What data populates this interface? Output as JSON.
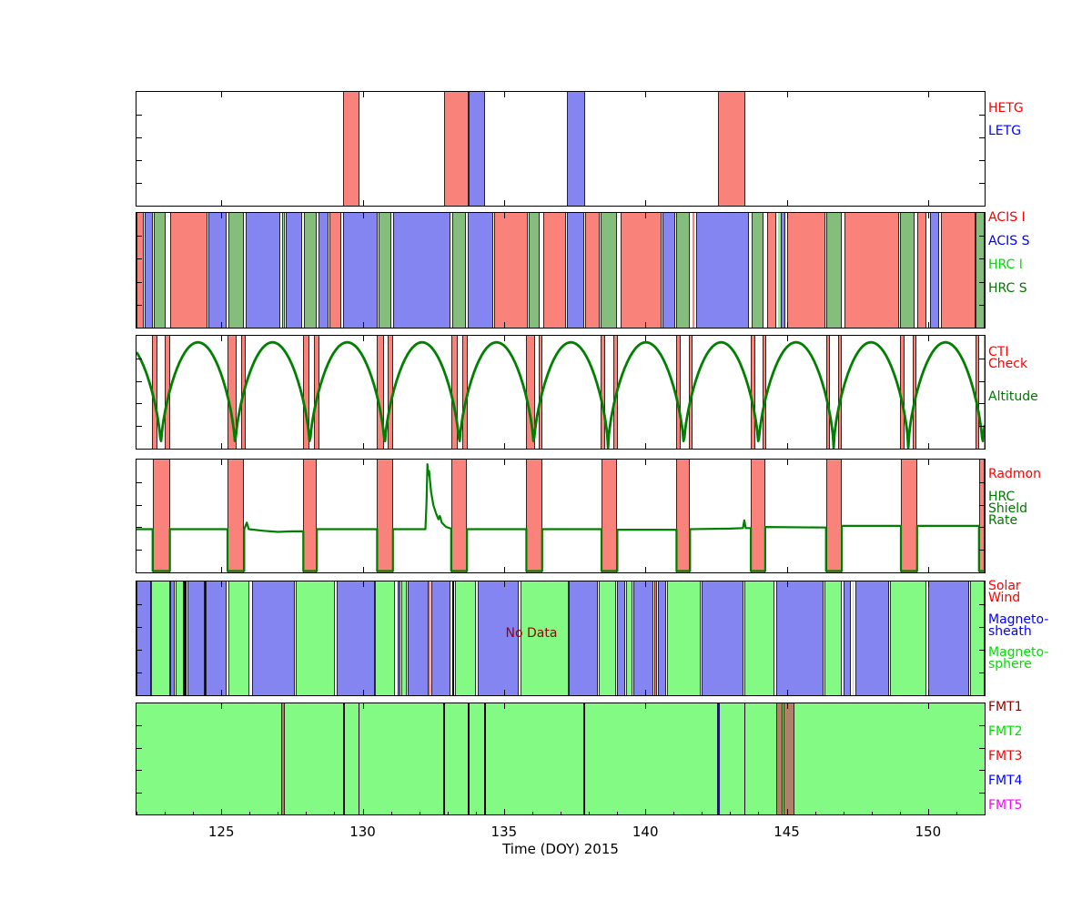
{
  "chart_data": {
    "type": "area",
    "subtype": "multipanel-timeline",
    "title": "",
    "xlabel": "Time (DOY) 2015",
    "xlim": [
      122,
      152
    ],
    "xticks": [
      125,
      130,
      135,
      140,
      145,
      150
    ],
    "grid": false,
    "legend_position": "right-of-each-panel",
    "palette": {
      "red": "#f9827a",
      "blue": "#8585f2",
      "sage": "#85bd7d",
      "bright": "#83fa83",
      "black": "#000000",
      "navy": "#1a1a66",
      "brown": "#b08068",
      "curve": "#008000"
    },
    "panels": [
      {
        "id": "gratings",
        "labels": [
          {
            "lines": [
              "HETG"
            ],
            "color": "#ff0000"
          },
          {
            "lines": [
              "LETG"
            ],
            "color": "#0000ff"
          }
        ],
        "segments": [
          [
            129.31,
            129.89,
            "red"
          ],
          [
            132.88,
            133.75,
            "red"
          ],
          [
            133.75,
            134.33,
            "blue"
          ],
          [
            137.22,
            137.87,
            "blue"
          ],
          [
            142.57,
            143.53,
            "red"
          ]
        ]
      },
      {
        "id": "instruments",
        "labels": [
          {
            "lines": [
              "ACIS I"
            ],
            "color": "#ff0000"
          },
          {
            "lines": [
              "ACIS S"
            ],
            "color": "#0000ff"
          },
          {
            "lines": [
              "HRC I"
            ],
            "color": "#00dd00"
          },
          {
            "lines": [
              "HRC S"
            ],
            "color": "#007700"
          }
        ],
        "segments": [
          [
            122.0,
            122.26,
            "red"
          ],
          [
            122.29,
            122.57,
            "blue"
          ],
          [
            122.61,
            123.03,
            "sage"
          ],
          [
            123.18,
            124.5,
            "red"
          ],
          [
            124.54,
            125.19,
            "blue"
          ],
          [
            125.25,
            125.79,
            "sage"
          ],
          [
            125.86,
            127.1,
            "blue"
          ],
          [
            127.14,
            127.25,
            "bright"
          ],
          [
            127.29,
            127.85,
            "blue"
          ],
          [
            127.91,
            128.36,
            "sage"
          ],
          [
            128.43,
            128.79,
            "blue"
          ],
          [
            128.83,
            129.24,
            "red"
          ],
          [
            129.3,
            130.53,
            "blue"
          ],
          [
            130.55,
            131.01,
            "sage"
          ],
          [
            131.07,
            133.1,
            "blue"
          ],
          [
            133.16,
            133.64,
            "sage"
          ],
          [
            133.72,
            134.61,
            "blue"
          ],
          [
            134.66,
            135.84,
            "red"
          ],
          [
            135.87,
            136.27,
            "sage"
          ],
          [
            136.38,
            137.18,
            "red"
          ],
          [
            137.24,
            137.83,
            "blue"
          ],
          [
            137.88,
            138.37,
            "red"
          ],
          [
            138.41,
            139.01,
            "sage"
          ],
          [
            139.11,
            140.56,
            "red"
          ],
          [
            140.62,
            141.05,
            "blue"
          ],
          [
            141.1,
            141.58,
            "sage"
          ],
          [
            141.67,
            141.74,
            "red"
          ],
          [
            141.8,
            143.67,
            "blue"
          ],
          [
            143.75,
            144.19,
            "sage"
          ],
          [
            144.31,
            144.64,
            "red"
          ],
          [
            144.69,
            144.78,
            "bright"
          ],
          [
            144.8,
            144.95,
            "blue"
          ],
          [
            145.0,
            146.36,
            "red"
          ],
          [
            146.39,
            146.95,
            "sage"
          ],
          [
            147.03,
            148.98,
            "red"
          ],
          [
            149.01,
            149.52,
            "sage"
          ],
          [
            149.61,
            149.95,
            "red"
          ],
          [
            150.06,
            150.38,
            "blue"
          ],
          [
            150.46,
            151.67,
            "red"
          ],
          [
            151.69,
            152.0,
            "sage"
          ]
        ]
      },
      {
        "id": "cti-altitude",
        "labels": [
          {
            "lines": [
              "CTI",
              "Check"
            ],
            "color": "#ff0000"
          },
          {
            "lines": [
              "Altitude"
            ],
            "color": "#007700"
          }
        ],
        "bars": [
          [
            122.54,
            122.75
          ],
          [
            123.0,
            123.18
          ],
          [
            125.22,
            125.54
          ],
          [
            125.7,
            125.86
          ],
          [
            127.9,
            128.11
          ],
          [
            128.28,
            128.47
          ],
          [
            130.51,
            130.74
          ],
          [
            130.9,
            131.07
          ],
          [
            133.13,
            133.37
          ],
          [
            133.53,
            133.72
          ],
          [
            135.79,
            136.11
          ],
          [
            136.22,
            136.37
          ],
          [
            138.41,
            138.58
          ],
          [
            138.88,
            139.04
          ],
          [
            141.1,
            141.26
          ],
          [
            141.53,
            141.66
          ],
          [
            143.73,
            143.89
          ],
          [
            144.13,
            144.28
          ],
          [
            146.39,
            146.52
          ],
          [
            146.82,
            146.95
          ],
          [
            149.02,
            149.17
          ],
          [
            149.45,
            149.6
          ],
          [
            151.67,
            151.81
          ],
          [
            151.97,
            152.0
          ]
        ],
        "altitude": {
          "perigees": [
            120.22,
            122.86,
            125.49,
            128.13,
            130.78,
            133.42,
            136.05,
            138.68,
            141.36,
            144.0,
            146.66,
            149.3,
            151.93,
            154.57
          ],
          "peak": 0.965,
          "power": 0.62
        }
      },
      {
        "id": "radmon",
        "labels": [
          {
            "lines": [
              "Radmon"
            ],
            "color": "#ff0000"
          },
          {
            "lines": [
              "HRC",
              "Shield",
              "Rate"
            ],
            "color": "#007700"
          }
        ],
        "bars": [
          [
            122.57,
            123.18
          ],
          [
            125.22,
            125.81
          ],
          [
            127.9,
            128.38
          ],
          [
            130.51,
            131.07
          ],
          [
            133.13,
            133.69
          ],
          [
            135.79,
            136.35
          ],
          [
            138.45,
            139.01
          ],
          [
            141.1,
            141.58
          ],
          [
            143.73,
            144.24
          ],
          [
            146.39,
            146.95
          ],
          [
            149.04,
            149.61
          ],
          [
            151.8,
            152.0
          ]
        ],
        "shield_rate_points": [
          [
            122.0,
            0.38
          ],
          [
            122.57,
            0.38
          ],
          [
            122.57,
            0
          ],
          [
            123.18,
            0
          ],
          [
            123.18,
            0.38
          ],
          [
            125.22,
            0.38
          ],
          [
            125.22,
            0
          ],
          [
            125.81,
            0
          ],
          [
            125.81,
            0.38
          ],
          [
            125.9,
            0.44
          ],
          [
            125.97,
            0.38
          ],
          [
            126.5,
            0.365
          ],
          [
            127.0,
            0.355
          ],
          [
            127.5,
            0.36
          ],
          [
            127.9,
            0.36
          ],
          [
            127.9,
            0
          ],
          [
            128.38,
            0
          ],
          [
            128.38,
            0.38
          ],
          [
            130.51,
            0.38
          ],
          [
            130.51,
            0
          ],
          [
            131.07,
            0
          ],
          [
            131.07,
            0.38
          ],
          [
            132.22,
            0.38
          ],
          [
            132.26,
            0.62
          ],
          [
            132.29,
            0.97
          ],
          [
            132.32,
            0.87
          ],
          [
            132.35,
            0.91
          ],
          [
            132.42,
            0.72
          ],
          [
            132.5,
            0.6
          ],
          [
            132.6,
            0.52
          ],
          [
            132.68,
            0.47
          ],
          [
            132.73,
            0.5
          ],
          [
            132.8,
            0.44
          ],
          [
            132.95,
            0.4
          ],
          [
            133.13,
            0.385
          ],
          [
            133.13,
            0
          ],
          [
            133.69,
            0
          ],
          [
            133.69,
            0.38
          ],
          [
            135.79,
            0.38
          ],
          [
            135.79,
            0
          ],
          [
            136.35,
            0
          ],
          [
            136.35,
            0.38
          ],
          [
            138.45,
            0.38
          ],
          [
            138.45,
            0
          ],
          [
            139.01,
            0
          ],
          [
            139.01,
            0.375
          ],
          [
            141.1,
            0.375
          ],
          [
            141.1,
            0
          ],
          [
            141.58,
            0
          ],
          [
            141.58,
            0.38
          ],
          [
            143.0,
            0.385
          ],
          [
            143.45,
            0.39
          ],
          [
            143.5,
            0.46
          ],
          [
            143.55,
            0.39
          ],
          [
            143.73,
            0.39
          ],
          [
            143.73,
            0
          ],
          [
            144.24,
            0
          ],
          [
            144.24,
            0.4
          ],
          [
            146.39,
            0.395
          ],
          [
            146.39,
            0
          ],
          [
            146.95,
            0
          ],
          [
            146.95,
            0.41
          ],
          [
            149.04,
            0.41
          ],
          [
            149.04,
            0
          ],
          [
            149.61,
            0
          ],
          [
            149.61,
            0.41
          ],
          [
            151.8,
            0.41
          ],
          [
            151.8,
            0
          ],
          [
            152.0,
            0
          ]
        ]
      },
      {
        "id": "solar-wind",
        "no_data": "No Data",
        "no_data_t": 135.97,
        "labels": [
          {
            "lines": [
              "Solar",
              "Wind"
            ],
            "color": "#ff0000"
          },
          {
            "lines": [
              "Magneto-",
              "sheath"
            ],
            "color": "#0000ff"
          },
          {
            "lines": [
              "Magneto-",
              "sphere"
            ],
            "color": "#00dd00"
          }
        ],
        "segments": [
          [
            122.0,
            122.51,
            "blue"
          ],
          [
            122.51,
            123.18,
            "bright"
          ],
          [
            123.18,
            123.36,
            "blue"
          ],
          [
            123.39,
            123.66,
            "bright"
          ],
          [
            123.68,
            123.77,
            "black"
          ],
          [
            123.79,
            124.41,
            "blue"
          ],
          [
            124.41,
            124.45,
            "black"
          ],
          [
            124.45,
            125.19,
            "blue"
          ],
          [
            125.25,
            126.0,
            "bright"
          ],
          [
            126.08,
            127.61,
            "blue"
          ],
          [
            127.63,
            129.03,
            "bright"
          ],
          [
            129.08,
            130.42,
            "blue"
          ],
          [
            130.44,
            131.15,
            "bright"
          ],
          [
            131.23,
            131.33,
            "blue"
          ],
          [
            131.37,
            131.55,
            "bright"
          ],
          [
            131.6,
            132.33,
            "blue"
          ],
          [
            132.33,
            132.41,
            "red"
          ],
          [
            132.44,
            133.1,
            "blue"
          ],
          [
            133.16,
            133.24,
            "black"
          ],
          [
            133.26,
            134.02,
            "bright"
          ],
          [
            134.07,
            135.52,
            "blue"
          ],
          [
            135.57,
            137.3,
            "bright"
          ],
          [
            137.3,
            138.31,
            "blue"
          ],
          [
            138.36,
            138.95,
            "bright"
          ],
          [
            139.0,
            139.27,
            "blue"
          ],
          [
            139.32,
            139.54,
            "bright"
          ],
          [
            139.59,
            140.27,
            "blue"
          ],
          [
            140.31,
            140.42,
            "red"
          ],
          [
            140.45,
            140.72,
            "blue"
          ],
          [
            140.78,
            141.95,
            "bright"
          ],
          [
            142.0,
            143.46,
            "blue"
          ],
          [
            143.51,
            144.58,
            "bright"
          ],
          [
            144.63,
            146.3,
            "blue"
          ],
          [
            146.35,
            146.95,
            "bright"
          ],
          [
            147.0,
            147.27,
            "blue"
          ],
          [
            147.32,
            147.37,
            "bright"
          ],
          [
            147.42,
            148.61,
            "blue"
          ],
          [
            148.66,
            149.95,
            "bright"
          ],
          [
            150.0,
            151.45,
            "blue"
          ],
          [
            151.5,
            152.0,
            "bright"
          ]
        ]
      },
      {
        "id": "fmt",
        "background": "bright",
        "labels": [
          {
            "lines": [
              "FMT1"
            ],
            "color": "#8b0000"
          },
          {
            "lines": [
              "FMT2"
            ],
            "color": "#00dd00"
          },
          {
            "lines": [
              "FMT3"
            ],
            "color": "#ff0000"
          },
          {
            "lines": [
              "FMT4"
            ],
            "color": "#0000ff"
          },
          {
            "lines": [
              "FMT5"
            ],
            "color": "#ff00ff"
          }
        ],
        "segments": [
          [
            127.13,
            127.26,
            "brown"
          ],
          [
            129.3,
            129.36,
            "black"
          ],
          [
            129.84,
            129.9,
            "black"
          ],
          [
            132.86,
            132.91,
            "black"
          ],
          [
            133.72,
            133.78,
            "black"
          ],
          [
            134.31,
            134.37,
            "black"
          ],
          [
            137.8,
            137.86,
            "black"
          ],
          [
            142.53,
            142.64,
            "navy"
          ],
          [
            143.49,
            143.55,
            "black"
          ],
          [
            144.63,
            144.85,
            "brown"
          ],
          [
            144.85,
            144.89,
            "bright"
          ],
          [
            144.89,
            145.28,
            "brown"
          ]
        ]
      }
    ]
  }
}
